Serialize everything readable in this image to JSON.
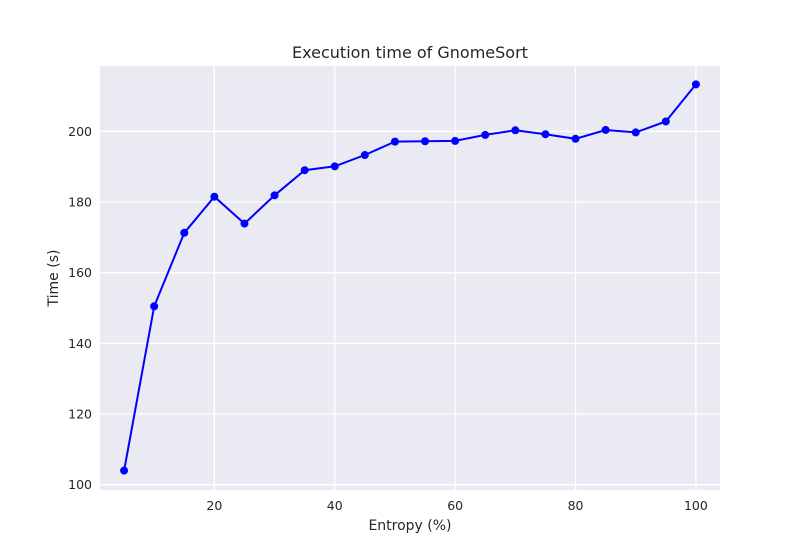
{
  "chart_data": {
    "type": "line",
    "title": "Execution time of GnomeSort",
    "xlabel": "Entropy (%)",
    "ylabel": "Time (s)",
    "xlim": [
      1,
      104
    ],
    "ylim": [
      98.5,
      218.5
    ],
    "x_ticks": [
      20,
      40,
      60,
      80,
      100
    ],
    "y_ticks": [
      100,
      120,
      140,
      160,
      180,
      200
    ],
    "grid": true,
    "legend": "none",
    "colors": {
      "line": "#0000ff",
      "background": "#eaeaf2",
      "grid": "#ffffff"
    },
    "series": [
      {
        "x": [
          5,
          10,
          15,
          20,
          25,
          30,
          35,
          40,
          45,
          50,
          55,
          60,
          65,
          70,
          75,
          80,
          85,
          90,
          95,
          100
        ],
        "values": [
          104.0,
          150.5,
          171.3,
          181.5,
          173.9,
          181.9,
          189.0,
          190.1,
          193.3,
          197.1,
          197.2,
          197.3,
          199.0,
          200.3,
          199.2,
          197.9,
          200.4,
          199.7,
          202.8,
          213.3
        ]
      }
    ]
  }
}
